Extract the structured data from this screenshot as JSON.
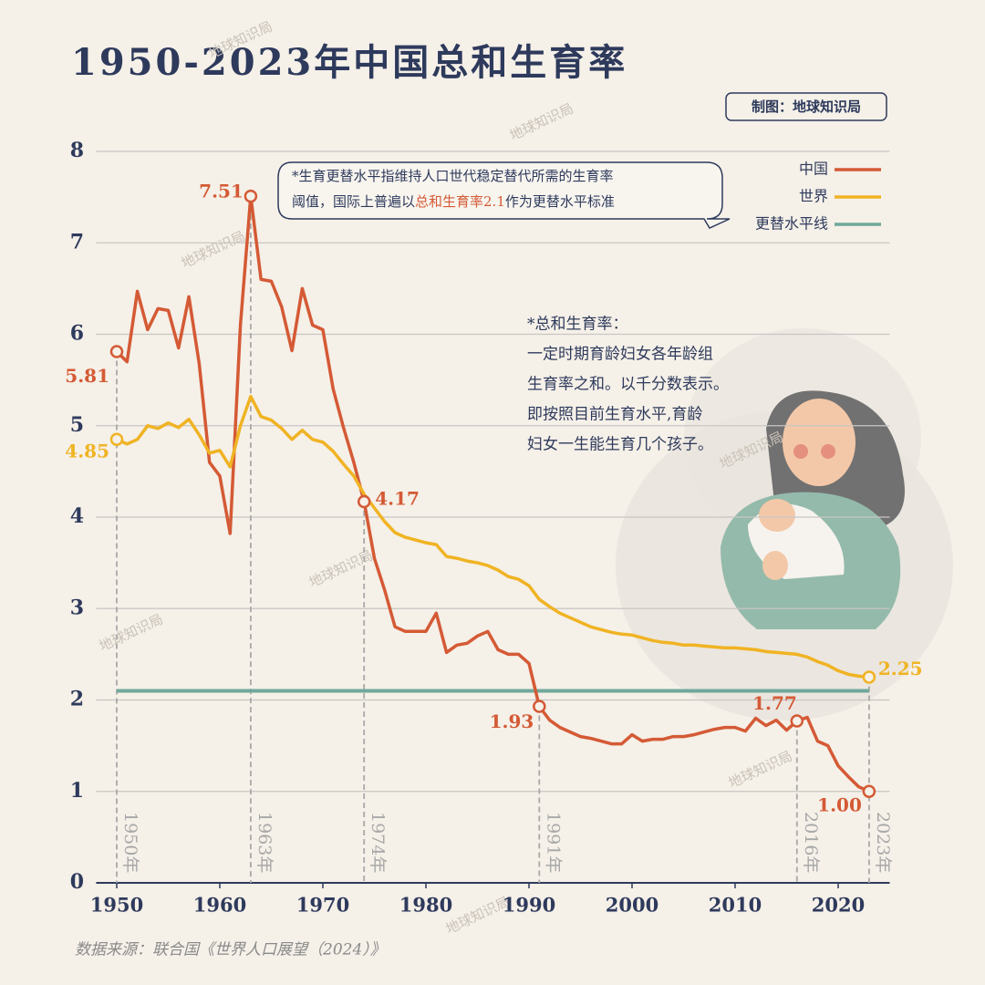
{
  "chart_data": {
    "type": "line",
    "title": "1950-2023年中国总和生育率",
    "credit": "制图：地球知识局",
    "watermark": "地球知识局",
    "note": [
      "*生育更替水平指维持人口世代稳定替代所需的生育率",
      "阈值，国际上普遍以",
      "总和生育率2.1",
      "作为更替水平标准"
    ],
    "definition": [
      "*总和生育率：",
      "一定时期育龄妇女各年龄组",
      "生育率之和。以千分数表示。",
      "即按照目前生育水平,育龄",
      "妇女一生能生育几个孩子。"
    ],
    "source": "数据来源：联合国《世界人口展望（2024）》",
    "x": [
      1950,
      1951,
      1952,
      1953,
      1954,
      1955,
      1956,
      1957,
      1958,
      1959,
      1960,
      1961,
      1962,
      1963,
      1964,
      1965,
      1966,
      1967,
      1968,
      1969,
      1970,
      1971,
      1972,
      1973,
      1974,
      1975,
      1976,
      1977,
      1978,
      1979,
      1980,
      1981,
      1982,
      1983,
      1984,
      1985,
      1986,
      1987,
      1988,
      1989,
      1990,
      1991,
      1992,
      1993,
      1994,
      1995,
      1996,
      1997,
      1998,
      1999,
      2000,
      2001,
      2002,
      2003,
      2004,
      2005,
      2006,
      2007,
      2008,
      2009,
      2010,
      2011,
      2012,
      2013,
      2014,
      2015,
      2016,
      2017,
      2018,
      2019,
      2020,
      2021,
      2022,
      2023
    ],
    "series": [
      {
        "name": "中国",
        "color": "#d45a35",
        "values": [
          5.81,
          5.7,
          6.47,
          6.05,
          6.28,
          6.26,
          5.85,
          6.41,
          5.68,
          4.6,
          4.45,
          3.82,
          6.1,
          7.51,
          6.6,
          6.58,
          6.3,
          5.82,
          6.5,
          6.1,
          6.05,
          5.4,
          4.98,
          4.6,
          4.17,
          3.55,
          3.2,
          2.8,
          2.75,
          2.75,
          2.75,
          2.95,
          2.52,
          2.6,
          2.62,
          2.7,
          2.75,
          2.55,
          2.5,
          2.5,
          2.4,
          1.93,
          1.78,
          1.7,
          1.65,
          1.6,
          1.58,
          1.55,
          1.52,
          1.52,
          1.62,
          1.55,
          1.57,
          1.57,
          1.6,
          1.6,
          1.62,
          1.65,
          1.68,
          1.7,
          1.7,
          1.66,
          1.8,
          1.72,
          1.78,
          1.67,
          1.77,
          1.81,
          1.55,
          1.5,
          1.28,
          1.16,
          1.05,
          1.0
        ],
        "value_labels": [
          "5.81",
          null,
          null,
          null,
          null,
          null,
          null,
          null,
          null,
          null,
          null,
          null,
          null,
          "7.51",
          null,
          null,
          null,
          null,
          null,
          null,
          null,
          null,
          null,
          null,
          "4.17",
          null,
          null,
          null,
          null,
          null,
          null,
          null,
          null,
          null,
          null,
          null,
          null,
          null,
          null,
          null,
          null,
          "1.93",
          null,
          null,
          null,
          null,
          null,
          null,
          null,
          null,
          null,
          null,
          null,
          null,
          null,
          null,
          null,
          null,
          null,
          null,
          null,
          null,
          null,
          null,
          null,
          null,
          "1.77",
          null,
          null,
          null,
          null,
          null,
          null,
          "1.00"
        ]
      },
      {
        "name": "世界",
        "color": "#f0b323",
        "values": [
          4.85,
          4.8,
          4.85,
          5.0,
          4.97,
          5.03,
          4.98,
          5.07,
          4.9,
          4.7,
          4.73,
          4.55,
          5.0,
          5.32,
          5.1,
          5.06,
          4.97,
          4.85,
          4.95,
          4.85,
          4.82,
          4.72,
          4.58,
          4.45,
          4.25,
          4.1,
          3.95,
          3.83,
          3.78,
          3.75,
          3.72,
          3.7,
          3.57,
          3.55,
          3.52,
          3.5,
          3.47,
          3.42,
          3.35,
          3.32,
          3.25,
          3.1,
          3.02,
          2.95,
          2.9,
          2.85,
          2.8,
          2.77,
          2.74,
          2.72,
          2.71,
          2.68,
          2.65,
          2.63,
          2.62,
          2.6,
          2.6,
          2.59,
          2.58,
          2.57,
          2.57,
          2.56,
          2.55,
          2.53,
          2.52,
          2.51,
          2.5,
          2.47,
          2.42,
          2.38,
          2.32,
          2.28,
          2.26,
          2.25
        ],
        "value_labels": [
          "4.85",
          null,
          null,
          null,
          null,
          null,
          null,
          null,
          null,
          null,
          null,
          null,
          null,
          null,
          null,
          null,
          null,
          null,
          null,
          null,
          null,
          null,
          null,
          null,
          null,
          null,
          null,
          null,
          null,
          null,
          null,
          null,
          null,
          null,
          null,
          null,
          null,
          null,
          null,
          null,
          null,
          null,
          null,
          null,
          null,
          null,
          null,
          null,
          null,
          null,
          null,
          null,
          null,
          null,
          null,
          null,
          null,
          null,
          null,
          null,
          null,
          null,
          null,
          null,
          null,
          null,
          null,
          null,
          null,
          null,
          null,
          null,
          null,
          "2.25"
        ]
      }
    ],
    "reference_line": {
      "name": "更替水平线",
      "value": 2.1,
      "color": "#6fa89a"
    },
    "year_markers": [
      {
        "x": 1950,
        "label": "1950年"
      },
      {
        "x": 1963,
        "label": "1963年"
      },
      {
        "x": 1974,
        "label": "1974年"
      },
      {
        "x": 1991,
        "label": "1991年"
      },
      {
        "x": 2016,
        "label": "2016年"
      },
      {
        "x": 2023,
        "label": "2023年"
      }
    ],
    "xlim": [
      1948,
      2025
    ],
    "xticks": [
      1950,
      1960,
      1970,
      1980,
      1990,
      2000,
      2010,
      2020
    ],
    "ylim": [
      0,
      8
    ],
    "yticks": [
      0,
      1,
      2,
      3,
      4,
      5,
      6,
      7,
      8
    ],
    "grid": true
  }
}
